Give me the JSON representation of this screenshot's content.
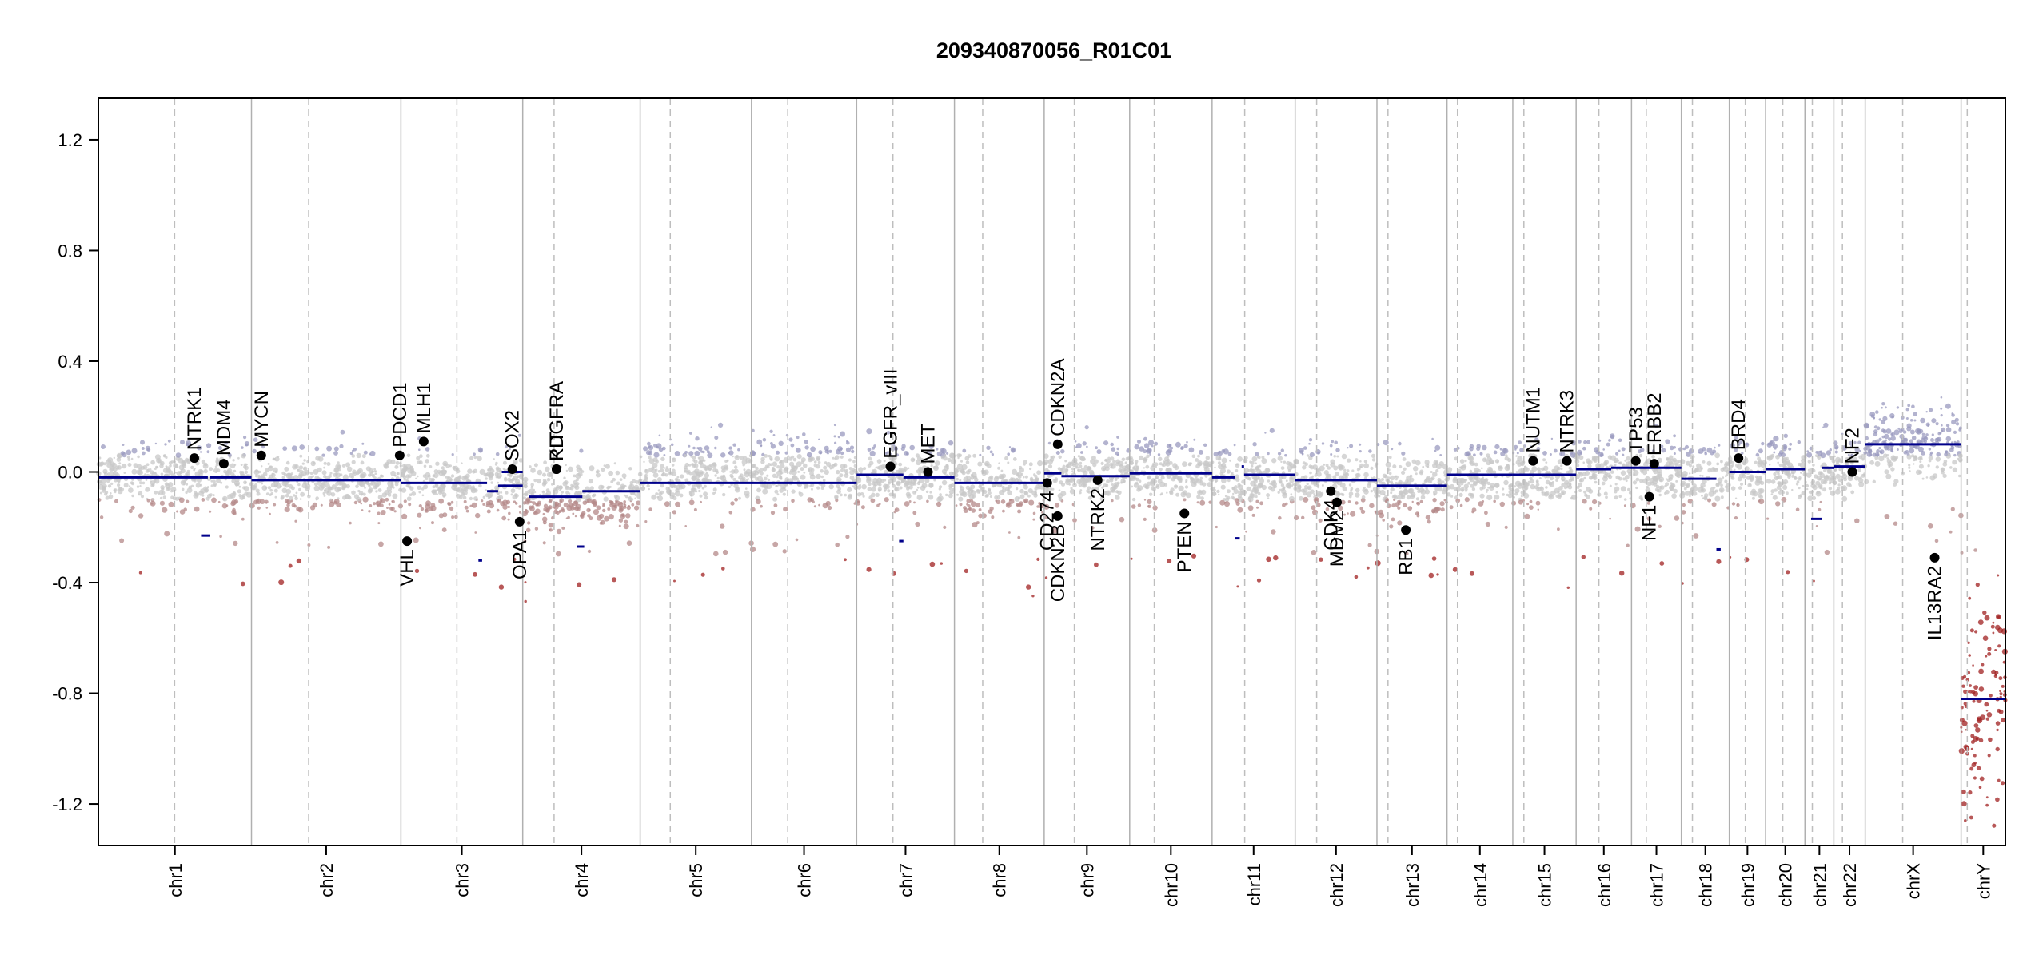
{
  "chart_data": {
    "type": "scatter",
    "title": "209340870056_R01C01",
    "xlabel": "",
    "ylabel": "",
    "ylim": [
      -1.35,
      1.35
    ],
    "y_ticks": [
      {
        "value": -1.2,
        "label": "-1.2"
      },
      {
        "value": -0.8,
        "label": "-0.8"
      },
      {
        "value": -0.4,
        "label": "-0.4"
      },
      {
        "value": 0.0,
        "label": "0.0"
      },
      {
        "value": 0.4,
        "label": "0.4"
      },
      {
        "value": 0.8,
        "label": "0.8"
      },
      {
        "value": 1.2,
        "label": "1.2"
      }
    ],
    "x_units": "cumulative genomic position (Mb)",
    "xlim": [
      0,
      3101
    ],
    "grid": false,
    "chromosomes": [
      {
        "name": "chr1",
        "start": 0,
        "end": 249,
        "centromere": 124
      },
      {
        "name": "chr2",
        "start": 249,
        "end": 492,
        "centromere": 342
      },
      {
        "name": "chr3",
        "start": 492,
        "end": 690,
        "centromere": 583
      },
      {
        "name": "chr4",
        "start": 690,
        "end": 881,
        "centromere": 741
      },
      {
        "name": "chr5",
        "start": 881,
        "end": 1062,
        "centromere": 930
      },
      {
        "name": "chr6",
        "start": 1062,
        "end": 1233,
        "centromere": 1121
      },
      {
        "name": "chr7",
        "start": 1233,
        "end": 1392,
        "centromere": 1292
      },
      {
        "name": "chr8",
        "start": 1392,
        "end": 1538,
        "centromere": 1438
      },
      {
        "name": "chr9",
        "start": 1538,
        "end": 1677,
        "centromere": 1587
      },
      {
        "name": "chr10",
        "start": 1677,
        "end": 1811,
        "centromere": 1717
      },
      {
        "name": "chr11",
        "start": 1811,
        "end": 1946,
        "centromere": 1864
      },
      {
        "name": "chr12",
        "start": 1946,
        "end": 2079,
        "centromere": 1981
      },
      {
        "name": "chr13",
        "start": 2079,
        "end": 2193,
        "centromere": 2097
      },
      {
        "name": "chr14",
        "start": 2193,
        "end": 2300,
        "centromere": 2210
      },
      {
        "name": "chr15",
        "start": 2300,
        "end": 2403,
        "centromere": 2318
      },
      {
        "name": "chr16",
        "start": 2403,
        "end": 2493,
        "centromere": 2440
      },
      {
        "name": "chr17",
        "start": 2493,
        "end": 2574,
        "centromere": 2517
      },
      {
        "name": "chr18",
        "start": 2574,
        "end": 2652,
        "centromere": 2592
      },
      {
        "name": "chr19",
        "start": 2652,
        "end": 2711,
        "centromere": 2678
      },
      {
        "name": "chr20",
        "start": 2711,
        "end": 2775,
        "centromere": 2739
      },
      {
        "name": "chr21",
        "start": 2775,
        "end": 2822,
        "centromere": 2787
      },
      {
        "name": "chr22",
        "start": 2822,
        "end": 2873,
        "centromere": 2836
      },
      {
        "name": "chrX",
        "start": 2873,
        "end": 3029,
        "centromere": 2934
      },
      {
        "name": "chrY",
        "start": 3029,
        "end": 3101,
        "centromere": 3039
      }
    ],
    "segments": [
      {
        "x0": 0,
        "x1": 178,
        "y": -0.02
      },
      {
        "x0": 167,
        "x1": 182,
        "y": -0.23
      },
      {
        "x0": 182,
        "x1": 249,
        "y": -0.02
      },
      {
        "x0": 249,
        "x1": 492,
        "y": -0.03
      },
      {
        "x0": 492,
        "x1": 632,
        "y": -0.04
      },
      {
        "x0": 632,
        "x1": 650,
        "y": -0.07
      },
      {
        "x0": 618,
        "x1": 624,
        "y": -0.32
      },
      {
        "x0": 650,
        "x1": 690,
        "y": -0.05
      },
      {
        "x0": 656,
        "x1": 690,
        "y": 0.0
      },
      {
        "x0": 700,
        "x1": 787,
        "y": -0.09
      },
      {
        "x0": 778,
        "x1": 790,
        "y": -0.27
      },
      {
        "x0": 787,
        "x1": 881,
        "y": -0.07
      },
      {
        "x0": 881,
        "x1": 1233,
        "y": -0.04
      },
      {
        "x0": 1233,
        "x1": 1309,
        "y": -0.01
      },
      {
        "x0": 1302,
        "x1": 1309,
        "y": -0.25
      },
      {
        "x0": 1309,
        "x1": 1392,
        "y": -0.02
      },
      {
        "x0": 1392,
        "x1": 1538,
        "y": -0.04
      },
      {
        "x0": 1538,
        "x1": 1566,
        "y": -0.005
      },
      {
        "x0": 1566,
        "x1": 1677,
        "y": -0.015
      },
      {
        "x0": 1677,
        "x1": 1811,
        "y": -0.005
      },
      {
        "x0": 1811,
        "x1": 1848,
        "y": -0.02
      },
      {
        "x0": 1848,
        "x1": 1856,
        "y": -0.24
      },
      {
        "x0": 1859,
        "x1": 1863,
        "y": 0.02
      },
      {
        "x0": 1863,
        "x1": 1946,
        "y": -0.01
      },
      {
        "x0": 1946,
        "x1": 2079,
        "y": -0.03
      },
      {
        "x0": 2079,
        "x1": 2193,
        "y": -0.05
      },
      {
        "x0": 2193,
        "x1": 2300,
        "y": -0.01
      },
      {
        "x0": 2300,
        "x1": 2403,
        "y": -0.01
      },
      {
        "x0": 2403,
        "x1": 2460,
        "y": 0.01
      },
      {
        "x0": 2460,
        "x1": 2574,
        "y": 0.015
      },
      {
        "x0": 2574,
        "x1": 2631,
        "y": -0.025
      },
      {
        "x0": 2631,
        "x1": 2638,
        "y": -0.28
      },
      {
        "x0": 2652,
        "x1": 2711,
        "y": 0.0
      },
      {
        "x0": 2711,
        "x1": 2775,
        "y": 0.01
      },
      {
        "x0": 2785,
        "x1": 2802,
        "y": -0.17
      },
      {
        "x0": 2802,
        "x1": 2822,
        "y": 0.015
      },
      {
        "x0": 2822,
        "x1": 2873,
        "y": 0.02
      },
      {
        "x0": 2873,
        "x1": 3029,
        "y": 0.1
      },
      {
        "x0": 3029,
        "x1": 3101,
        "y": -0.82
      }
    ],
    "genes": [
      {
        "name": "NTRK1",
        "x": 156,
        "y": 0.05
      },
      {
        "name": "MDM4",
        "x": 204,
        "y": 0.03
      },
      {
        "name": "MYCN",
        "x": 265,
        "y": 0.06
      },
      {
        "name": "PDCD1",
        "x": 490,
        "y": 0.06
      },
      {
        "name": "VHL",
        "x": 502,
        "y": -0.25
      },
      {
        "name": "MLH1",
        "x": 529,
        "y": 0.11
      },
      {
        "name": "SOX2",
        "x": 673,
        "y": 0.01
      },
      {
        "name": "OPA1",
        "x": 685,
        "y": -0.18
      },
      {
        "name": "KIT",
        "x": 745,
        "y": 0.01
      },
      {
        "name": "PDGFRA",
        "x": 745,
        "y": 0.01
      },
      {
        "name": "EGFR",
        "x": 1288,
        "y": 0.02
      },
      {
        "name": "EGFR_vIII",
        "x": 1288,
        "y": 0.02
      },
      {
        "name": "MET",
        "x": 1349,
        "y": 0.0
      },
      {
        "name": "CD274",
        "x": 1543,
        "y": -0.04
      },
      {
        "name": "CDKN2A",
        "x": 1560,
        "y": 0.1
      },
      {
        "name": "CDKN2B",
        "x": 1560,
        "y": -0.16
      },
      {
        "name": "NTRK2",
        "x": 1625,
        "y": -0.03
      },
      {
        "name": "PTEN",
        "x": 1766,
        "y": -0.15
      },
      {
        "name": "CDK4",
        "x": 2004,
        "y": -0.07
      },
      {
        "name": "MDM2",
        "x": 2014,
        "y": -0.11
      },
      {
        "name": "RB1",
        "x": 2126,
        "y": -0.21
      },
      {
        "name": "NUTM1",
        "x": 2333,
        "y": 0.04
      },
      {
        "name": "NTRK3",
        "x": 2388,
        "y": 0.04
      },
      {
        "name": "TP53",
        "x": 2500,
        "y": 0.04
      },
      {
        "name": "NF1",
        "x": 2522,
        "y": -0.09
      },
      {
        "name": "ERBB2",
        "x": 2530,
        "y": 0.03
      },
      {
        "name": "BRD4",
        "x": 2667,
        "y": 0.05
      },
      {
        "name": "NF2",
        "x": 2852,
        "y": 0.0
      },
      {
        "name": "IL13RA2",
        "x": 2986,
        "y": -0.31
      }
    ],
    "gene_labels": [
      {
        "name": "NTRK1",
        "text": "NTRK1",
        "dir": "up"
      },
      {
        "name": "MDM4",
        "text": "MDM4",
        "dir": "up"
      },
      {
        "name": "MYCN",
        "text": "MYCN",
        "dir": "up"
      },
      {
        "name": "PDCD1",
        "text": "PDCD1",
        "dir": "up"
      },
      {
        "name": "VHL",
        "text": "VHL",
        "dir": "down"
      },
      {
        "name": "MLH1",
        "text": "MLH1",
        "dir": "up"
      },
      {
        "name": "SOX2",
        "text": "SOX2",
        "dir": "up"
      },
      {
        "name": "OPA1",
        "text": "OPA1",
        "dir": "down"
      },
      {
        "name": "KIT",
        "text": "KIT",
        "dir": "up"
      },
      {
        "name": "PDGFRA",
        "text": "PDGFRA",
        "dir": "up"
      },
      {
        "name": "EGFR",
        "text": "EGFR",
        "dir": "up"
      },
      {
        "name": "EGFR_vIII",
        "text": "EGFR_vIII",
        "dir": "up"
      },
      {
        "name": "MET",
        "text": "MET",
        "dir": "up"
      },
      {
        "name": "CD274",
        "text": "CD274",
        "dir": "down"
      },
      {
        "name": "CDKN2A",
        "text": "CDKN2A",
        "dir": "up"
      },
      {
        "name": "CDKN2B",
        "text": "CDKN2B",
        "dir": "down"
      },
      {
        "name": "NTRK2",
        "text": "NTRK2",
        "dir": "down"
      },
      {
        "name": "PTEN",
        "text": "PTEN",
        "dir": "down"
      },
      {
        "name": "CDK4",
        "text": "CDK4",
        "dir": "down"
      },
      {
        "name": "MDM2",
        "text": "MDM2",
        "dir": "down"
      },
      {
        "name": "RB1",
        "text": "RB1",
        "dir": "down"
      },
      {
        "name": "NUTM1",
        "text": "NUTM1",
        "dir": "up"
      },
      {
        "name": "NTRK3",
        "text": "NTRK3",
        "dir": "up"
      },
      {
        "name": "TP53",
        "text": "TP53",
        "dir": "up"
      },
      {
        "name": "NF1",
        "text": "NF1",
        "dir": "down"
      },
      {
        "name": "ERBB2",
        "text": "ERBB2",
        "dir": "up"
      },
      {
        "name": "BRD4",
        "text": "BRD4",
        "dir": "up"
      },
      {
        "name": "NF2",
        "text": "NF2",
        "dir": "up"
      },
      {
        "name": "IL13RA2",
        "text": "IL13RA2",
        "dir": "down"
      }
    ],
    "colors": {
      "segment": "#00008B",
      "gain_points": "#9A9ABF",
      "neutral_points": "#C8C8C8",
      "loss_points": "#B48888",
      "deep_loss_points": "#A02020",
      "chrom_boundary": "#B0B0B0",
      "centromere": "#BEBEBE",
      "gene_dot": "#000000"
    }
  }
}
